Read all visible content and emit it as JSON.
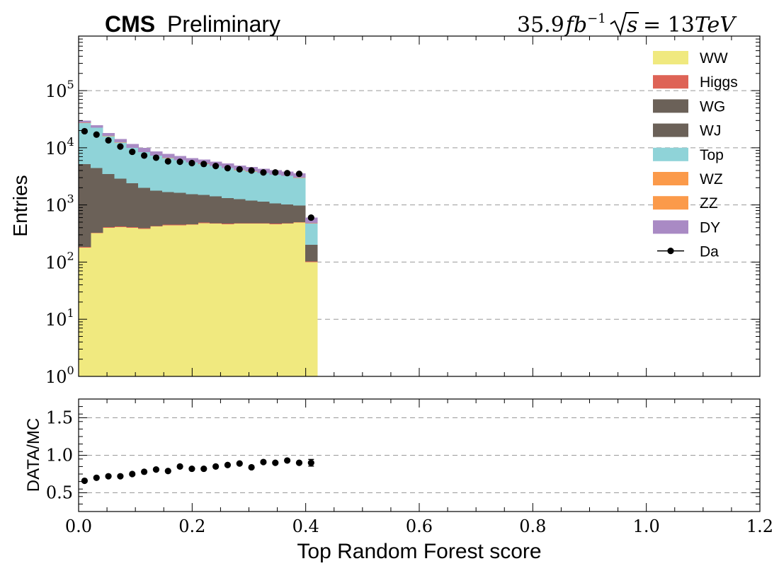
{
  "header": {
    "cms_label": "CMS",
    "preliminary_label": "Preliminary",
    "lumi_value": "35.9",
    "lumi_unit": "fb",
    "lumi_exponent": "−1",
    "energy_label": "= 13",
    "energy_unit": "TeV"
  },
  "chart_data": [
    {
      "type": "bar",
      "subtype": "stacked-histogram",
      "ylabel": "Entries",
      "yscale": "log",
      "ylim": [
        1,
        900000
      ],
      "xlim": [
        0.0,
        1.2
      ],
      "x_tick_labels": [],
      "y_tick_labels": [
        {
          "base": "10",
          "exp": "0",
          "value": 1
        },
        {
          "base": "10",
          "exp": "1",
          "value": 10
        },
        {
          "base": "10",
          "exp": "2",
          "value": 100
        },
        {
          "base": "10",
          "exp": "3",
          "value": 1000
        },
        {
          "base": "10",
          "exp": "4",
          "value": 10000
        },
        {
          "base": "10",
          "exp": "5",
          "value": 100000
        }
      ],
      "grid": "horizontal-dashed",
      "legend_position": "top-right",
      "bin_edges": [
        0.0,
        0.021,
        0.042,
        0.063,
        0.084,
        0.105,
        0.126,
        0.147,
        0.168,
        0.189,
        0.21,
        0.231,
        0.252,
        0.273,
        0.294,
        0.315,
        0.336,
        0.357,
        0.378,
        0.399,
        0.42
      ],
      "series": [
        {
          "name": "WW",
          "color": "#f0e97f",
          "values": [
            180,
            320,
            400,
            410,
            400,
            380,
            420,
            440,
            440,
            450,
            480,
            470,
            460,
            470,
            470,
            470,
            460,
            470,
            490,
            100
          ]
        },
        {
          "name": "Higgs",
          "color": "#de6356",
          "values": [
            5,
            8,
            10,
            10,
            10,
            10,
            10,
            10,
            10,
            10,
            10,
            10,
            10,
            10,
            10,
            10,
            10,
            10,
            10,
            2
          ]
        },
        {
          "name": "WG",
          "color": "#6b6158",
          "values": [
            100,
            80,
            70,
            60,
            50,
            45,
            40,
            35,
            30,
            30,
            28,
            26,
            24,
            22,
            20,
            18,
            16,
            14,
            12,
            10
          ]
        },
        {
          "name": "WJ",
          "color": "#6b6158",
          "values": [
            4900,
            4000,
            3000,
            2400,
            1950,
            1550,
            1300,
            1200,
            1150,
            1050,
            980,
            900,
            820,
            760,
            700,
            650,
            580,
            520,
            470,
            90
          ]
        },
        {
          "name": "Top",
          "color": "#8fd3d8",
          "values": [
            22000,
            18000,
            12500,
            9500,
            7500,
            6400,
            5500,
            4900,
            4400,
            4000,
            3700,
            3400,
            3100,
            2800,
            2650,
            2450,
            2300,
            2200,
            2000,
            270
          ]
        },
        {
          "name": "WZ",
          "color": "#fb9a4a",
          "values": [
            80,
            70,
            60,
            55,
            50,
            45,
            40,
            38,
            35,
            33,
            30,
            28,
            26,
            24,
            22,
            20,
            18,
            16,
            14,
            3
          ]
        },
        {
          "name": "ZZ",
          "color": "#fb9a4a",
          "values": [
            40,
            35,
            30,
            28,
            25,
            22,
            20,
            18,
            17,
            16,
            15,
            14,
            13,
            12,
            11,
            10,
            9,
            8,
            7,
            2
          ]
        },
        {
          "name": "DY",
          "color": "#a98ac4",
          "values": [
            2700,
            2400,
            2000,
            1800,
            1600,
            1450,
            1350,
            1200,
            1100,
            1000,
            950,
            900,
            850,
            800,
            750,
            700,
            650,
            600,
            560,
            120
          ]
        }
      ],
      "data_series": {
        "name": "Da",
        "x": [
          0.0105,
          0.0315,
          0.0525,
          0.0735,
          0.0945,
          0.1155,
          0.1365,
          0.1575,
          0.1785,
          0.1995,
          0.2205,
          0.2415,
          0.2625,
          0.2835,
          0.3045,
          0.3255,
          0.3465,
          0.3675,
          0.3885,
          0.4095
        ],
        "values": [
          19500,
          17000,
          13500,
          10500,
          8500,
          7300,
          6700,
          5800,
          5700,
          5400,
          5200,
          4800,
          4400,
          4200,
          4000,
          3700,
          3700,
          3600,
          3500,
          600
        ]
      }
    },
    {
      "type": "scatter",
      "xlabel": "Top Random Forest score",
      "ylabel": "DATA/MC",
      "xlim": [
        0.0,
        1.2
      ],
      "ylim": [
        0.25,
        1.75
      ],
      "x_tick_labels": [
        "0.0",
        "0.2",
        "0.4",
        "0.6",
        "0.8",
        "1.0",
        "1.2"
      ],
      "y_tick_labels": [
        "0.5",
        "1.0",
        "1.5"
      ],
      "grid": "horizontal-dashed",
      "x": [
        0.0105,
        0.0315,
        0.0525,
        0.0735,
        0.0945,
        0.1155,
        0.1365,
        0.1575,
        0.1785,
        0.1995,
        0.2205,
        0.2415,
        0.2625,
        0.2835,
        0.3045,
        0.3255,
        0.3465,
        0.3675,
        0.3885,
        0.4095
      ],
      "values": [
        0.66,
        0.7,
        0.72,
        0.72,
        0.75,
        0.78,
        0.81,
        0.79,
        0.85,
        0.82,
        0.82,
        0.85,
        0.87,
        0.89,
        0.84,
        0.91,
        0.9,
        0.93,
        0.9,
        0.9
      ],
      "errors": [
        0.005,
        0.005,
        0.006,
        0.006,
        0.007,
        0.008,
        0.008,
        0.009,
        0.009,
        0.01,
        0.01,
        0.011,
        0.012,
        0.012,
        0.013,
        0.014,
        0.014,
        0.015,
        0.016,
        0.045
      ]
    }
  ]
}
